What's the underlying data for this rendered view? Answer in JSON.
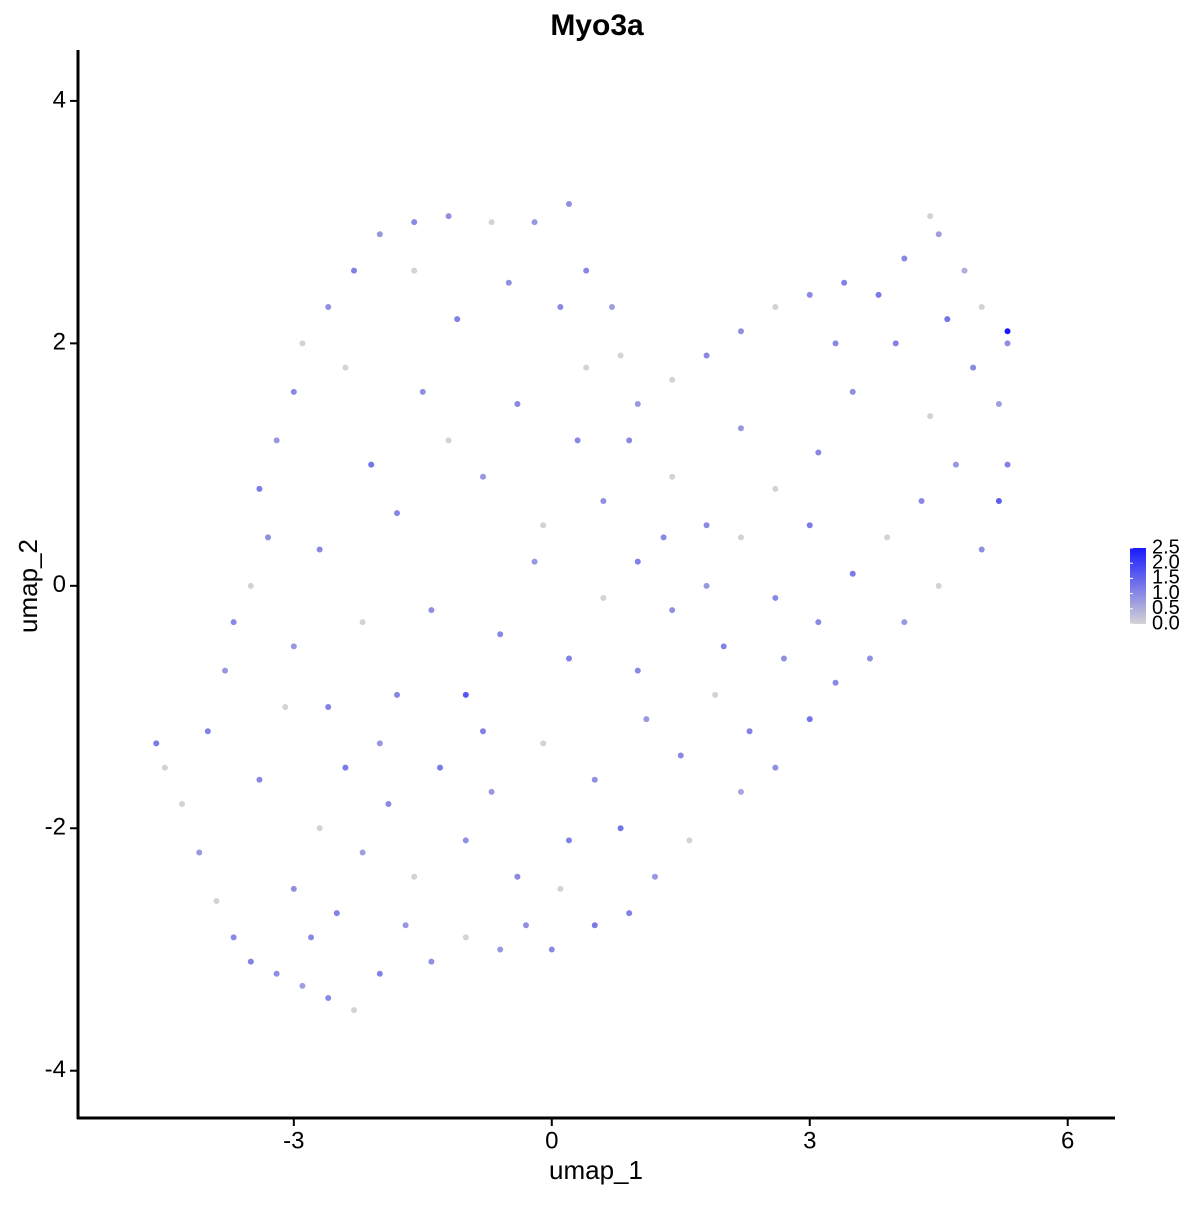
{
  "chart_data": {
    "type": "scatter",
    "title": "Myo3a",
    "x_label": "umap_1",
    "y_label": "umap_2",
    "x": [
      -4.6,
      -4.5,
      -4.3,
      -4.1,
      -3.9,
      -3.7,
      -3.5,
      -3.2,
      -2.9,
      -2.6,
      -2.3,
      -2.0,
      -1.4,
      -1.0,
      -0.6,
      0,
      0.5,
      0.9,
      1.2,
      1.6,
      2.2,
      2.6,
      3.0,
      3.3,
      3.7,
      4.1,
      4.5,
      5.0,
      5.2,
      5.3,
      5.2,
      5.3,
      5.3,
      5.0,
      4.8,
      4.5,
      4.4,
      4.1,
      3.8,
      3.4,
      3.0,
      2.6,
      2.2,
      1.8,
      1.4,
      1.0,
      0.8,
      0.7,
      0.4,
      0.2,
      -0.2,
      -0.7,
      -1.2,
      -1.6,
      -2.0,
      -2.3,
      -2.6,
      -2.9,
      -3.0,
      -3.2,
      -3.4,
      -3.3,
      -3.5,
      -3.7,
      -3.8,
      -4.0,
      -3.0,
      -2.7,
      -2.5,
      -2.2,
      -1.9,
      -1.6,
      -1.3,
      -1.0,
      -0.7,
      -0.4,
      -0.1,
      0.2,
      0.5,
      0.8,
      1.1,
      1.5,
      1.9,
      2.3,
      2.7,
      3.1,
      3.5,
      3.9,
      4.3,
      4.7,
      4.9,
      4.4,
      4.0,
      3.5,
      3.1,
      2.6,
      2.2,
      1.8,
      1.4,
      1.0,
      0.6,
      0.3,
      -0.1,
      -0.4,
      -0.8,
      -1.1,
      -1.5,
      -1.8,
      -2.1,
      -2.4,
      -2.7,
      -3.0,
      -2.6,
      -2.2,
      -1.8,
      -1.4,
      -1.0,
      -0.6,
      -0.2,
      0.2,
      0.6,
      1.0,
      1.4,
      1.8,
      2.2,
      2.6,
      3.0,
      0.1,
      -0.5,
      -1.6,
      -2.0,
      -3.4,
      -3.1,
      -2.4,
      -0.3,
      1.3,
      0.4,
      -0.8,
      0.9,
      -1.2,
      2.0,
      3.3,
      4.6,
      -2.8,
      -1.7,
      0.1
    ],
    "y": [
      -1.3,
      -1.5,
      -1.8,
      -2.2,
      -2.6,
      -2.9,
      -3.1,
      -3.2,
      -3.3,
      -3.4,
      -3.5,
      -3.2,
      -3.1,
      -2.9,
      -3.0,
      -3.0,
      -2.8,
      -2.7,
      -2.4,
      -2.1,
      -1.7,
      -1.5,
      -1.1,
      -0.8,
      -0.6,
      -0.3,
      0,
      0.3,
      0.7,
      1.0,
      1.5,
      2.0,
      2.1,
      2.3,
      2.6,
      2.9,
      3.05,
      2.7,
      2.4,
      2.5,
      2.4,
      2.3,
      2.1,
      1.9,
      1.7,
      1.5,
      1.9,
      2.3,
      2.6,
      3.15,
      3.0,
      3.0,
      3.05,
      3.0,
      2.9,
      2.6,
      2.3,
      2.0,
      1.6,
      1.2,
      0.8,
      0.4,
      0,
      -0.3,
      -0.7,
      -1.2,
      -2.5,
      -2.0,
      -2.7,
      -2.2,
      -1.8,
      -2.4,
      -1.5,
      -2.1,
      -1.7,
      -2.4,
      -1.3,
      -2.1,
      -1.6,
      -2.0,
      -1.1,
      -1.4,
      -0.9,
      -1.2,
      -0.6,
      -0.3,
      0.1,
      0.4,
      0.7,
      1.0,
      1.8,
      1.4,
      2.0,
      1.6,
      1.1,
      0.8,
      1.3,
      0.5,
      0.9,
      0.2,
      0.7,
      1.2,
      0.5,
      1.5,
      0.9,
      2.2,
      1.6,
      0.6,
      1.0,
      1.8,
      0.3,
      -0.5,
      -1.0,
      -0.3,
      -0.9,
      -0.2,
      -0.9,
      -0.4,
      0.2,
      -0.6,
      -0.1,
      -0.7,
      -0.2,
      0,
      0.4,
      -0.1,
      0.5,
      2.3,
      2.5,
      2.6,
      -1.3,
      -1.6,
      -1.0,
      -1.5,
      -2.8,
      0.4,
      1.8,
      -1.2,
      1.2,
      1.2,
      -0.5,
      2.0,
      2.2,
      -2.9,
      -2.8,
      -2.5
    ],
    "values": [
      1.2,
      0,
      0,
      0.8,
      0,
      1.0,
      1.1,
      0.9,
      0.7,
      1.0,
      0,
      1.1,
      0.9,
      0,
      0.8,
      1.0,
      1.2,
      1.1,
      0.8,
      0,
      0.6,
      0.9,
      1.3,
      1.0,
      0.9,
      0.8,
      0,
      0.9,
      1.6,
      1.1,
      0.7,
      0.9,
      2.5,
      0,
      0.5,
      0.7,
      0,
      1.0,
      1.2,
      1.1,
      1.0,
      0,
      0.9,
      1.0,
      0,
      0.8,
      0,
      0.7,
      1.0,
      0.9,
      0.8,
      0,
      0.9,
      1.0,
      0.8,
      1.1,
      0.9,
      0,
      1.0,
      0.8,
      1.2,
      0.9,
      0,
      1.0,
      0.8,
      1.1,
      0.9,
      0,
      1.1,
      0.7,
      1.0,
      0,
      1.2,
      0.9,
      0.8,
      1.0,
      0,
      1.1,
      0.9,
      1.3,
      0.8,
      1.0,
      0,
      1.1,
      0.9,
      1.0,
      1.2,
      0,
      1.0,
      0.8,
      1.0,
      0,
      1.1,
      0.9,
      1.0,
      0,
      0.8,
      1.0,
      0,
      1.1,
      0.9,
      1.0,
      0,
      1.0,
      0.8,
      1.1,
      0.9,
      1.0,
      1.3,
      0,
      1.0,
      0.8,
      1.1,
      0,
      1.0,
      0.9,
      1.7,
      1.0,
      0.8,
      1.1,
      0,
      1.0,
      0.9,
      0.8,
      0,
      1.0,
      1.2,
      1.0,
      0.9,
      0,
      0.8,
      1.0,
      0,
      1.2,
      0.9,
      1.0,
      0,
      1.1,
      1.0,
      0,
      1.1,
      1.0,
      1.3,
      1.0,
      0.8,
      0
    ],
    "color_low": "#d3d3d3",
    "color_high": "#1a1aff",
    "xlim": [
      -5.51,
      6.55
    ],
    "xticks": [
      -3,
      0,
      3,
      6
    ],
    "ylim": [
      -4.39,
      4.42
    ],
    "yticks": [
      -4,
      -2,
      0,
      2,
      4
    ],
    "colorbar_lim": [
      0,
      2.5
    ],
    "colorbar_ticks": [
      {
        "value": 0,
        "label": "0.0"
      },
      0.5,
      {
        "value": 1,
        "label": "1.0"
      },
      1.5,
      {
        "value": 2,
        "label": "2.0"
      },
      2.5
    ],
    "legend": "right",
    "grid": false
  }
}
